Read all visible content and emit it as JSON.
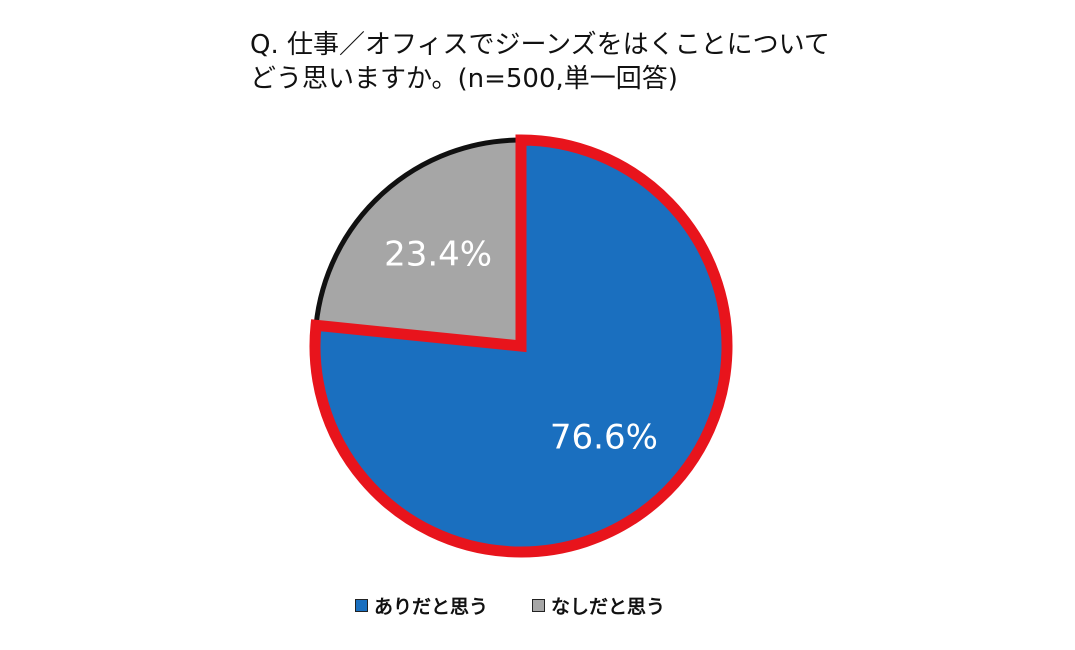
{
  "chart_data": {
    "type": "pie",
    "title_lines": [
      "Q. 仕事／オフィスでジーンズをはくことについて",
      "どう思いますか。(n=500,単一回答)"
    ],
    "start_angle_deg": 0,
    "direction": "clockwise",
    "slices": [
      {
        "label": "ありだと思う",
        "value": 76.6,
        "value_label": "76.6%",
        "color": "#1a6fbf",
        "stroke": "#e8141c",
        "label_color": "#ffffff"
      },
      {
        "label": "なしだと思う",
        "value": 23.4,
        "value_label": "23.4%",
        "color": "#a6a6a6",
        "stroke": "#111111",
        "label_color": "#ffffff"
      }
    ],
    "legend_position": "bottom"
  }
}
